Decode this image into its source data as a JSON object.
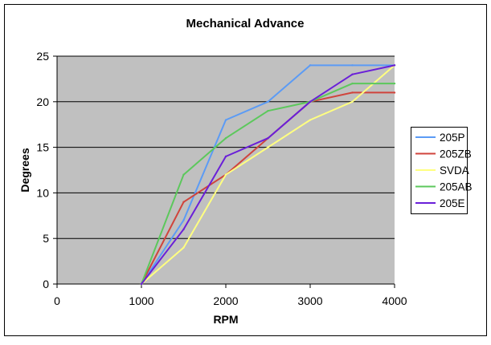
{
  "chart_data": {
    "type": "line",
    "title": "Mechanical Advance",
    "xlabel": "RPM",
    "ylabel": "Degrees",
    "xlim": [
      0,
      4000
    ],
    "ylim": [
      0,
      25
    ],
    "x_ticks": [
      0,
      1000,
      2000,
      3000,
      4000
    ],
    "y_ticks": [
      0,
      5,
      10,
      15,
      20,
      25
    ],
    "grid": "horizontal",
    "legend_position": "right",
    "plot_background": "#c0c0c0",
    "series": [
      {
        "name": "205P",
        "color": "#5b9bf5",
        "x": [
          1000,
          1500,
          2000,
          2500,
          3000,
          3500,
          4000
        ],
        "values": [
          0,
          7,
          18,
          20,
          24,
          24,
          24
        ]
      },
      {
        "name": "205ZB",
        "color": "#d0443c",
        "x": [
          1000,
          1500,
          2000,
          2500,
          3000,
          3500,
          4000
        ],
        "values": [
          0,
          9,
          12,
          16,
          20,
          21,
          21
        ]
      },
      {
        "name": "SVDA",
        "color": "#ffff80",
        "x": [
          1000,
          1500,
          2000,
          2500,
          3000,
          3500,
          4000
        ],
        "values": [
          0,
          4,
          12,
          15,
          18,
          20,
          24
        ]
      },
      {
        "name": "205AB",
        "color": "#5cc85c",
        "x": [
          1000,
          1500,
          2000,
          2500,
          3000,
          3500,
          4000
        ],
        "values": [
          0,
          12,
          16,
          19,
          20,
          22,
          22
        ]
      },
      {
        "name": "205E",
        "color": "#6a1fd8",
        "x": [
          1000,
          1500,
          2000,
          2500,
          3000,
          3500,
          4000
        ],
        "values": [
          0,
          6,
          14,
          16,
          20,
          23,
          24
        ]
      }
    ]
  }
}
